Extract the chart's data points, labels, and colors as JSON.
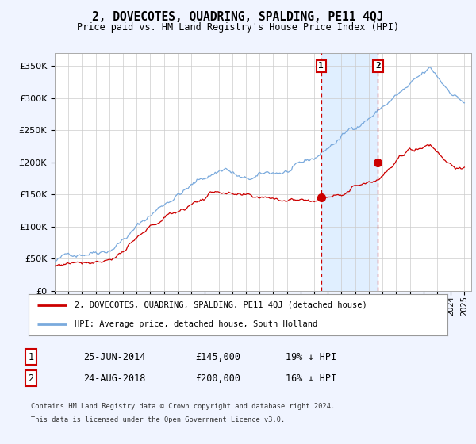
{
  "title": "2, DOVECOTES, QUADRING, SPALDING, PE11 4QJ",
  "subtitle": "Price paid vs. HM Land Registry's House Price Index (HPI)",
  "legend_line1": "2, DOVECOTES, QUADRING, SPALDING, PE11 4QJ (detached house)",
  "legend_line2": "HPI: Average price, detached house, South Holland",
  "footnote1": "Contains HM Land Registry data © Crown copyright and database right 2024.",
  "footnote2": "This data is licensed under the Open Government Licence v3.0.",
  "transaction1_date": "25-JUN-2014",
  "transaction1_price": "£145,000",
  "transaction1_note": "19% ↓ HPI",
  "transaction2_date": "24-AUG-2018",
  "transaction2_price": "£200,000",
  "transaction2_note": "16% ↓ HPI",
  "t1_year": 2014.5,
  "t2_year": 2018.667,
  "t1_price": 145000,
  "t2_price": 200000,
  "hpi_color": "#7aaadd",
  "price_color": "#cc0000",
  "background_color": "#f0f4ff",
  "plot_bg_color": "#ffffff",
  "shade_color": "#ddeeff",
  "vline_color": "#cc0000",
  "ylim_min": 0,
  "ylim_max": 370000,
  "yticks": [
    0,
    50000,
    100000,
    150000,
    200000,
    250000,
    300000,
    350000
  ],
  "xlim_min": 1995,
  "xlim_max": 2025.5,
  "start_year": 1995,
  "end_year": 2025
}
